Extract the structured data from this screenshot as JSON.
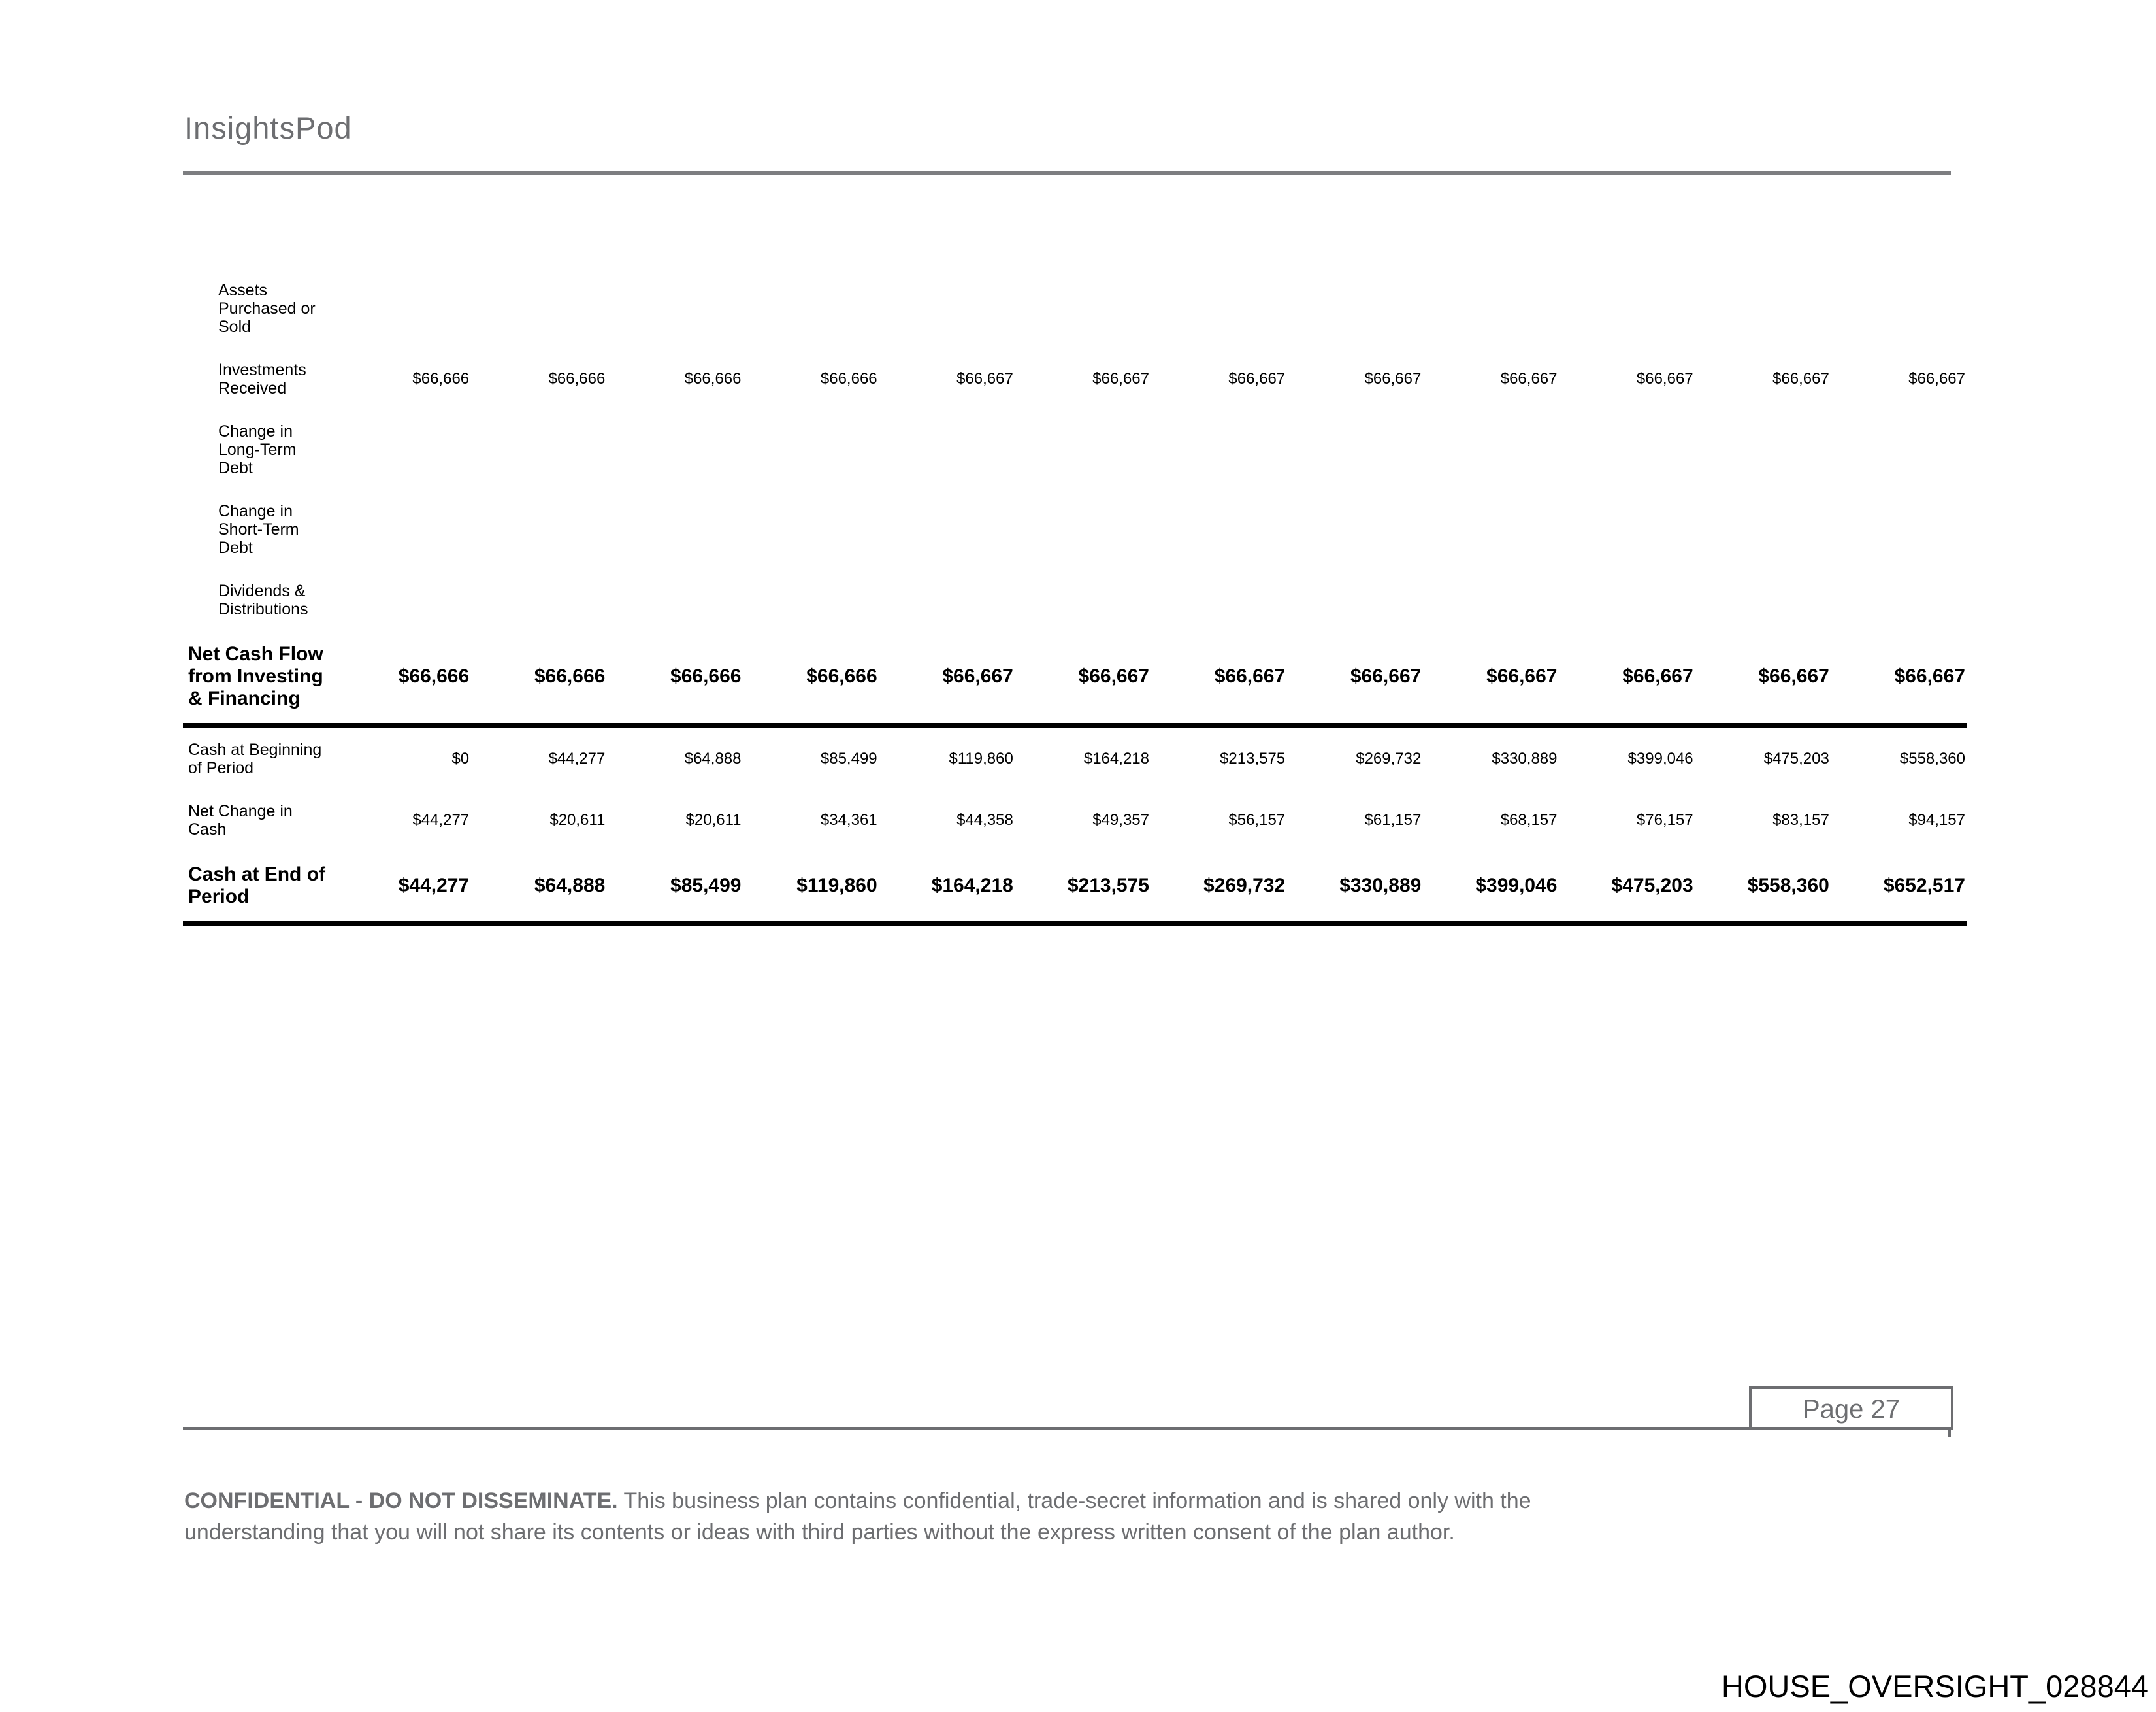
{
  "header": {
    "brand": "InsightsPod"
  },
  "table": {
    "rows": [
      {
        "label": "Assets\nPurchased or\nSold",
        "type": "item",
        "divider_after": false,
        "values": [
          "",
          "",
          "",
          "",
          "",
          "",
          "",
          "",
          "",
          "",
          "",
          ""
        ]
      },
      {
        "label": "Investments\nReceived",
        "type": "item",
        "divider_after": false,
        "values": [
          "$66,666",
          "$66,666",
          "$66,666",
          "$66,666",
          "$66,667",
          "$66,667",
          "$66,667",
          "$66,667",
          "$66,667",
          "$66,667",
          "$66,667",
          "$66,667"
        ]
      },
      {
        "label": "Change in\nLong-Term\nDebt",
        "type": "item",
        "divider_after": false,
        "values": [
          "",
          "",
          "",
          "",
          "",
          "",
          "",
          "",
          "",
          "",
          "",
          ""
        ]
      },
      {
        "label": "Change in\nShort-Term\nDebt",
        "type": "item",
        "divider_after": false,
        "values": [
          "",
          "",
          "",
          "",
          "",
          "",
          "",
          "",
          "",
          "",
          "",
          ""
        ]
      },
      {
        "label": "Dividends &\nDistributions",
        "type": "item",
        "divider_after": false,
        "values": [
          "",
          "",
          "",
          "",
          "",
          "",
          "",
          "",
          "",
          "",
          "",
          ""
        ]
      },
      {
        "label": "Net Cash Flow\nfrom Investing\n& Financing",
        "type": "total",
        "divider_after": true,
        "values": [
          "$66,666",
          "$66,666",
          "$66,666",
          "$66,666",
          "$66,667",
          "$66,667",
          "$66,667",
          "$66,667",
          "$66,667",
          "$66,667",
          "$66,667",
          "$66,667"
        ]
      },
      {
        "label": "Cash at Beginning\nof Period",
        "type": "sub",
        "divider_after": false,
        "values": [
          "$0",
          "$44,277",
          "$64,888",
          "$85,499",
          "$119,860",
          "$164,218",
          "$213,575",
          "$269,732",
          "$330,889",
          "$399,046",
          "$475,203",
          "$558,360"
        ]
      },
      {
        "label": "Net Change in\nCash",
        "type": "sub",
        "divider_after": false,
        "values": [
          "$44,277",
          "$20,611",
          "$20,611",
          "$34,361",
          "$44,358",
          "$49,357",
          "$56,157",
          "$61,157",
          "$68,157",
          "$76,157",
          "$83,157",
          "$94,157"
        ]
      },
      {
        "label": "Cash at End of\nPeriod",
        "type": "total",
        "divider_after": true,
        "values": [
          "$44,277",
          "$64,888",
          "$85,499",
          "$119,860",
          "$164,218",
          "$213,575",
          "$269,732",
          "$330,889",
          "$399,046",
          "$475,203",
          "$558,360",
          "$652,517"
        ]
      }
    ]
  },
  "footer": {
    "page_label": "Page 27",
    "confidential_bold": "CONFIDENTIAL - DO NOT DISSEMINATE.",
    "confidential_text": "This business plan contains confidential, trade-secret information and is shared only with the\nunderstanding that you will not share its contents or ideas with third parties without the express written consent of the plan author.",
    "watermark": "HOUSE_OVERSIGHT_028844"
  },
  "colors": {
    "text_gray": "#6d6e71",
    "rule_gray": "#7d7e81",
    "table_text": "#000000"
  }
}
